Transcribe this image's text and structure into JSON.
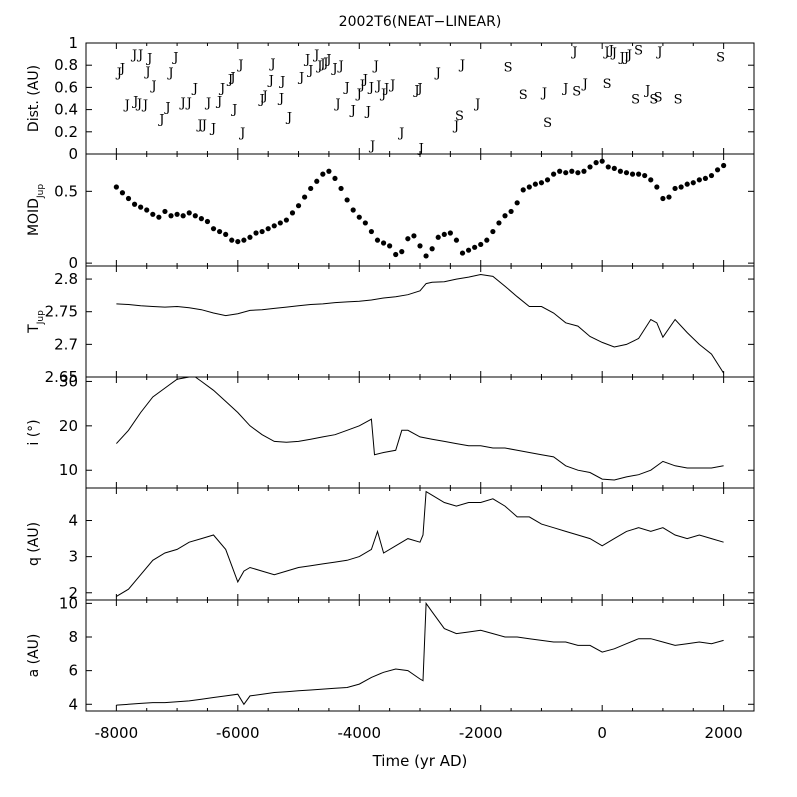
{
  "figure": {
    "title": "2002T6(NEAT−LINEAR)",
    "xlabel": "Time (yr AD)",
    "x_ticks": [
      "-8000",
      "-6000",
      "-4000",
      "-2000",
      "0",
      "2000"
    ]
  },
  "chart_data": [
    {
      "id": "dist",
      "type": "scatter",
      "ylabel": "Dist. (AU)",
      "xlim": [
        -8500,
        2500
      ],
      "ylim": [
        0,
        1
      ],
      "y_ticks": [
        0,
        0.2,
        0.4,
        0.6,
        0.8,
        1
      ],
      "y_tick_labels": [
        "0",
        "0.2",
        "0.4",
        "0.6",
        "0.8",
        "1"
      ],
      "marker": "planet letter (J = Jupiter, S = Saturn)",
      "points": [
        {
          "x": -7950,
          "y": 0.74,
          "label": "J"
        },
        {
          "x": -7900,
          "y": 0.78,
          "label": "J"
        },
        {
          "x": -7820,
          "y": 0.45,
          "label": "J"
        },
        {
          "x": -7700,
          "y": 0.9,
          "label": "J"
        },
        {
          "x": -7680,
          "y": 0.48,
          "label": "J"
        },
        {
          "x": -7620,
          "y": 0.46,
          "label": "J"
        },
        {
          "x": -7600,
          "y": 0.9,
          "label": "J"
        },
        {
          "x": -7520,
          "y": 0.45,
          "label": "J"
        },
        {
          "x": -7480,
          "y": 0.75,
          "label": "J"
        },
        {
          "x": -7450,
          "y": 0.87,
          "label": "J"
        },
        {
          "x": -7380,
          "y": 0.62,
          "label": "J"
        },
        {
          "x": -7250,
          "y": 0.32,
          "label": "J"
        },
        {
          "x": -7150,
          "y": 0.43,
          "label": "J"
        },
        {
          "x": -7100,
          "y": 0.74,
          "label": "J"
        },
        {
          "x": -7020,
          "y": 0.88,
          "label": "J"
        },
        {
          "x": -6900,
          "y": 0.47,
          "label": "J"
        },
        {
          "x": -6800,
          "y": 0.47,
          "label": "J"
        },
        {
          "x": -6700,
          "y": 0.6,
          "label": "J"
        },
        {
          "x": -6620,
          "y": 0.27,
          "label": "J"
        },
        {
          "x": -6550,
          "y": 0.27,
          "label": "J"
        },
        {
          "x": -6480,
          "y": 0.47,
          "label": "J"
        },
        {
          "x": -6400,
          "y": 0.24,
          "label": "J"
        },
        {
          "x": -6300,
          "y": 0.48,
          "label": "J"
        },
        {
          "x": -6250,
          "y": 0.6,
          "label": "J"
        },
        {
          "x": -6120,
          "y": 0.68,
          "label": "J"
        },
        {
          "x": -6080,
          "y": 0.7,
          "label": "J"
        },
        {
          "x": -6050,
          "y": 0.41,
          "label": "J"
        },
        {
          "x": -5950,
          "y": 0.81,
          "label": "J"
        },
        {
          "x": -5920,
          "y": 0.2,
          "label": "J"
        },
        {
          "x": -5600,
          "y": 0.5,
          "label": "J"
        },
        {
          "x": -5550,
          "y": 0.53,
          "label": "J"
        },
        {
          "x": -5450,
          "y": 0.67,
          "label": "J"
        },
        {
          "x": -5420,
          "y": 0.82,
          "label": "J"
        },
        {
          "x": -5280,
          "y": 0.51,
          "label": "J"
        },
        {
          "x": -5260,
          "y": 0.66,
          "label": "J"
        },
        {
          "x": -5150,
          "y": 0.34,
          "label": "J"
        },
        {
          "x": -4950,
          "y": 0.7,
          "label": "J"
        },
        {
          "x": -4850,
          "y": 0.86,
          "label": "J"
        },
        {
          "x": -4800,
          "y": 0.76,
          "label": "J"
        },
        {
          "x": -4700,
          "y": 0.9,
          "label": "J"
        },
        {
          "x": -4650,
          "y": 0.8,
          "label": "J"
        },
        {
          "x": -4600,
          "y": 0.82,
          "label": "J"
        },
        {
          "x": -4550,
          "y": 0.83,
          "label": "J"
        },
        {
          "x": -4500,
          "y": 0.86,
          "label": "J"
        },
        {
          "x": -4400,
          "y": 0.78,
          "label": "J"
        },
        {
          "x": -4350,
          "y": 0.46,
          "label": "J"
        },
        {
          "x": -4300,
          "y": 0.8,
          "label": "J"
        },
        {
          "x": -4200,
          "y": 0.61,
          "label": "J"
        },
        {
          "x": -4100,
          "y": 0.4,
          "label": "J"
        },
        {
          "x": -4000,
          "y": 0.55,
          "label": "J"
        },
        {
          "x": -3950,
          "y": 0.63,
          "label": "J"
        },
        {
          "x": -3900,
          "y": 0.68,
          "label": "J"
        },
        {
          "x": -3850,
          "y": 0.39,
          "label": "J"
        },
        {
          "x": -3800,
          "y": 0.61,
          "label": "J"
        },
        {
          "x": -3780,
          "y": 0.08,
          "label": "J"
        },
        {
          "x": -3720,
          "y": 0.8,
          "label": "J"
        },
        {
          "x": -3680,
          "y": 0.62,
          "label": "J"
        },
        {
          "x": -3600,
          "y": 0.55,
          "label": "J"
        },
        {
          "x": -3550,
          "y": 0.6,
          "label": "J"
        },
        {
          "x": -3450,
          "y": 0.63,
          "label": "J"
        },
        {
          "x": -3300,
          "y": 0.2,
          "label": "J"
        },
        {
          "x": -3050,
          "y": 0.58,
          "label": "J"
        },
        {
          "x": -3000,
          "y": 0.6,
          "label": "J"
        },
        {
          "x": -2980,
          "y": 0.06,
          "label": "J"
        },
        {
          "x": -2700,
          "y": 0.74,
          "label": "J"
        },
        {
          "x": -2400,
          "y": 0.26,
          "label": "J"
        },
        {
          "x": -2350,
          "y": 0.35,
          "label": "S"
        },
        {
          "x": -2300,
          "y": 0.81,
          "label": "J"
        },
        {
          "x": -2050,
          "y": 0.46,
          "label": "J"
        },
        {
          "x": -1550,
          "y": 0.79,
          "label": "S"
        },
        {
          "x": -1300,
          "y": 0.54,
          "label": "S"
        },
        {
          "x": -950,
          "y": 0.56,
          "label": "J"
        },
        {
          "x": -900,
          "y": 0.29,
          "label": "S"
        },
        {
          "x": -600,
          "y": 0.6,
          "label": "J"
        },
        {
          "x": -450,
          "y": 0.93,
          "label": "J"
        },
        {
          "x": -420,
          "y": 0.57,
          "label": "S"
        },
        {
          "x": -280,
          "y": 0.64,
          "label": "J"
        },
        {
          "x": 80,
          "y": 0.64,
          "label": "S"
        },
        {
          "x": 80,
          "y": 0.93,
          "label": "J"
        },
        {
          "x": 150,
          "y": 0.94,
          "label": "J"
        },
        {
          "x": 200,
          "y": 0.92,
          "label": "J"
        },
        {
          "x": 330,
          "y": 0.88,
          "label": "J"
        },
        {
          "x": 400,
          "y": 0.88,
          "label": "J"
        },
        {
          "x": 450,
          "y": 0.9,
          "label": "J"
        },
        {
          "x": 600,
          "y": 0.94,
          "label": "S"
        },
        {
          "x": 550,
          "y": 0.5,
          "label": "S"
        },
        {
          "x": 750,
          "y": 0.58,
          "label": "J"
        },
        {
          "x": 850,
          "y": 0.5,
          "label": "S"
        },
        {
          "x": 920,
          "y": 0.52,
          "label": "S"
        },
        {
          "x": 950,
          "y": 0.93,
          "label": "J"
        },
        {
          "x": 1250,
          "y": 0.5,
          "label": "S"
        },
        {
          "x": 1950,
          "y": 0.88,
          "label": "S"
        }
      ]
    },
    {
      "id": "moid",
      "type": "scatter",
      "ylabel": "MOID",
      "ylabel_sub": "Jup",
      "xlim": [
        -8500,
        2500
      ],
      "ylim": [
        -0.02,
        0.76
      ],
      "y_ticks": [
        0,
        0.5
      ],
      "y_tick_labels": [
        "0",
        "0.5"
      ],
      "x": [
        -8000,
        -7900,
        -7800,
        -7700,
        -7600,
        -7500,
        -7400,
        -7300,
        -7200,
        -7100,
        -7000,
        -6900,
        -6800,
        -6700,
        -6600,
        -6500,
        -6400,
        -6300,
        -6200,
        -6100,
        -6000,
        -5900,
        -5800,
        -5700,
        -5600,
        -5500,
        -5400,
        -5300,
        -5200,
        -5100,
        -5000,
        -4900,
        -4800,
        -4700,
        -4600,
        -4500,
        -4400,
        -4300,
        -4200,
        -4100,
        -4000,
        -3900,
        -3800,
        -3700,
        -3600,
        -3500,
        -3400,
        -3300,
        -3200,
        -3100,
        -3000,
        -2900,
        -2800,
        -2700,
        -2600,
        -2500,
        -2400,
        -2300,
        -2200,
        -2100,
        -2000,
        -1900,
        -1800,
        -1700,
        -1600,
        -1500,
        -1400,
        -1300,
        -1200,
        -1100,
        -1000,
        -900,
        -800,
        -700,
        -600,
        -500,
        -400,
        -300,
        -200,
        -100,
        0,
        100,
        200,
        300,
        400,
        500,
        600,
        700,
        800,
        900,
        1000,
        1100,
        1200,
        1300,
        1400,
        1500,
        1600,
        1700,
        1800,
        1900,
        2000
      ],
      "values": [
        0.53,
        0.49,
        0.45,
        0.41,
        0.39,
        0.37,
        0.34,
        0.32,
        0.36,
        0.33,
        0.34,
        0.33,
        0.35,
        0.33,
        0.31,
        0.29,
        0.24,
        0.22,
        0.2,
        0.16,
        0.15,
        0.16,
        0.18,
        0.21,
        0.22,
        0.24,
        0.26,
        0.28,
        0.3,
        0.35,
        0.4,
        0.46,
        0.52,
        0.57,
        0.62,
        0.64,
        0.59,
        0.52,
        0.44,
        0.37,
        0.32,
        0.28,
        0.22,
        0.16,
        0.14,
        0.12,
        0.06,
        0.08,
        0.17,
        0.19,
        0.12,
        0.05,
        0.1,
        0.18,
        0.2,
        0.21,
        0.16,
        0.07,
        0.09,
        0.11,
        0.13,
        0.16,
        0.22,
        0.28,
        0.33,
        0.36,
        0.42,
        0.51,
        0.53,
        0.55,
        0.56,
        0.58,
        0.62,
        0.64,
        0.63,
        0.64,
        0.63,
        0.64,
        0.67,
        0.7,
        0.71,
        0.67,
        0.66,
        0.64,
        0.63,
        0.62,
        0.62,
        0.61,
        0.58,
        0.53,
        0.45,
        0.46,
        0.52,
        0.53,
        0.55,
        0.56,
        0.58,
        0.59,
        0.61,
        0.65,
        0.68
      ]
    },
    {
      "id": "tjup",
      "type": "line",
      "ylabel": "T",
      "ylabel_sub": "Jup",
      "xlim": [
        -8500,
        2500
      ],
      "ylim": [
        2.65,
        2.82
      ],
      "y_ticks": [
        2.65,
        2.7,
        2.75,
        2.8
      ],
      "y_tick_labels": [
        "2.65",
        "2.7",
        "2.75",
        "2.8"
      ],
      "x": [
        -8000,
        -7800,
        -7600,
        -7400,
        -7200,
        -7000,
        -6800,
        -6600,
        -6400,
        -6200,
        -6000,
        -5800,
        -5600,
        -5400,
        -5200,
        -5000,
        -4800,
        -4600,
        -4400,
        -4200,
        -4000,
        -3800,
        -3600,
        -3400,
        -3200,
        -3000,
        -2900,
        -2800,
        -2600,
        -2400,
        -2200,
        -2000,
        -1800,
        -1600,
        -1400,
        -1200,
        -1000,
        -800,
        -600,
        -400,
        -200,
        0,
        200,
        400,
        600,
        800,
        900,
        1000,
        1200,
        1400,
        1600,
        1800,
        2000
      ],
      "values": [
        2.762,
        2.761,
        2.759,
        2.758,
        2.757,
        2.758,
        2.756,
        2.753,
        2.748,
        2.744,
        2.747,
        2.752,
        2.753,
        2.755,
        2.757,
        2.759,
        2.761,
        2.762,
        2.764,
        2.765,
        2.766,
        2.768,
        2.771,
        2.773,
        2.776,
        2.782,
        2.793,
        2.795,
        2.796,
        2.8,
        2.803,
        2.807,
        2.804,
        2.789,
        2.773,
        2.758,
        2.758,
        2.748,
        2.733,
        2.728,
        2.712,
        2.703,
        2.696,
        2.7,
        2.709,
        2.738,
        2.733,
        2.711,
        2.738,
        2.718,
        2.7,
        2.685,
        2.656
      ]
    },
    {
      "id": "incl",
      "type": "line",
      "ylabel": "i (°)",
      "xlim": [
        -8500,
        2500
      ],
      "ylim": [
        6,
        31
      ],
      "y_ticks": [
        10,
        20,
        30
      ],
      "y_tick_labels": [
        "10",
        "20",
        "30"
      ],
      "x": [
        -8000,
        -7800,
        -7600,
        -7400,
        -7200,
        -7000,
        -6800,
        -6700,
        -6600,
        -6400,
        -6200,
        -6000,
        -5800,
        -5600,
        -5400,
        -5200,
        -5000,
        -4800,
        -4600,
        -4400,
        -4200,
        -4000,
        -3800,
        -3750,
        -3600,
        -3400,
        -3300,
        -3200,
        -3000,
        -2800,
        -2600,
        -2400,
        -2200,
        -2000,
        -1800,
        -1600,
        -1400,
        -1200,
        -1000,
        -800,
        -600,
        -400,
        -200,
        0,
        200,
        400,
        600,
        800,
        1000,
        1200,
        1400,
        1600,
        1800,
        2000
      ],
      "values": [
        16,
        19,
        23,
        26.5,
        28.5,
        30.5,
        31,
        31,
        30,
        28,
        25.5,
        23,
        20,
        18,
        16.5,
        16.3,
        16.5,
        17,
        17.5,
        18,
        19,
        20,
        21.5,
        13.5,
        14,
        14.5,
        19,
        19,
        17.5,
        17,
        16.5,
        16,
        15.5,
        15.5,
        15,
        15,
        14.5,
        14,
        13.5,
        13,
        11,
        10,
        9.5,
        8,
        7.8,
        8.5,
        9,
        10,
        12,
        11,
        10.5,
        10.5,
        10.5,
        11
      ]
    },
    {
      "id": "q",
      "type": "line",
      "ylabel": "q (AU)",
      "xlim": [
        -8500,
        2500
      ],
      "ylim": [
        1.8,
        4.9
      ],
      "y_ticks": [
        2,
        3,
        4
      ],
      "y_tick_labels": [
        "2",
        "3",
        "4"
      ],
      "x": [
        -8000,
        -7800,
        -7600,
        -7400,
        -7200,
        -7000,
        -6800,
        -6600,
        -6400,
        -6200,
        -6000,
        -5900,
        -5800,
        -5600,
        -5400,
        -5200,
        -5000,
        -4800,
        -4600,
        -4400,
        -4200,
        -4000,
        -3800,
        -3700,
        -3600,
        -3400,
        -3200,
        -3000,
        -2950,
        -2900,
        -2800,
        -2600,
        -2400,
        -2200,
        -2000,
        -1800,
        -1600,
        -1400,
        -1200,
        -1000,
        -800,
        -600,
        -400,
        -200,
        0,
        200,
        400,
        600,
        800,
        1000,
        1200,
        1400,
        1600,
        1800,
        2000
      ],
      "values": [
        1.9,
        2.1,
        2.5,
        2.9,
        3.1,
        3.2,
        3.4,
        3.5,
        3.6,
        3.2,
        2.3,
        2.6,
        2.7,
        2.6,
        2.5,
        2.6,
        2.7,
        2.75,
        2.8,
        2.85,
        2.9,
        3.0,
        3.2,
        3.7,
        3.1,
        3.3,
        3.5,
        3.4,
        3.6,
        4.8,
        4.7,
        4.5,
        4.4,
        4.5,
        4.5,
        4.6,
        4.4,
        4.1,
        4.1,
        3.9,
        3.8,
        3.7,
        3.6,
        3.5,
        3.3,
        3.5,
        3.7,
        3.8,
        3.7,
        3.8,
        3.6,
        3.5,
        3.6,
        3.5,
        3.4
      ]
    },
    {
      "id": "a",
      "type": "line",
      "ylabel": "a (AU)",
      "xlim": [
        -8500,
        2500
      ],
      "ylim": [
        3.6,
        10.2
      ],
      "y_ticks": [
        4,
        6,
        8,
        10
      ],
      "y_tick_labels": [
        "4",
        "6",
        "8",
        "10"
      ],
      "x": [
        -8000,
        -7800,
        -7600,
        -7400,
        -7200,
        -7000,
        -6800,
        -6600,
        -6400,
        -6200,
        -6000,
        -5900,
        -5800,
        -5600,
        -5400,
        -5200,
        -5000,
        -4800,
        -4600,
        -4400,
        -4200,
        -4000,
        -3800,
        -3600,
        -3400,
        -3200,
        -3000,
        -2950,
        -2900,
        -2800,
        -2600,
        -2400,
        -2200,
        -2000,
        -1800,
        -1600,
        -1400,
        -1200,
        -1000,
        -800,
        -600,
        -400,
        -200,
        0,
        200,
        400,
        600,
        800,
        1000,
        1200,
        1400,
        1600,
        1800,
        2000
      ],
      "values": [
        3.95,
        4.0,
        4.05,
        4.1,
        4.1,
        4.15,
        4.2,
        4.3,
        4.4,
        4.5,
        4.6,
        4.0,
        4.5,
        4.6,
        4.7,
        4.75,
        4.8,
        4.85,
        4.9,
        4.95,
        5.0,
        5.2,
        5.6,
        5.9,
        6.1,
        6.0,
        5.5,
        5.4,
        10.0,
        9.5,
        8.5,
        8.2,
        8.3,
        8.4,
        8.2,
        8.0,
        8.0,
        7.9,
        7.8,
        7.7,
        7.7,
        7.5,
        7.5,
        7.1,
        7.3,
        7.6,
        7.9,
        7.9,
        7.7,
        7.5,
        7.6,
        7.7,
        7.6,
        7.8
      ]
    }
  ]
}
